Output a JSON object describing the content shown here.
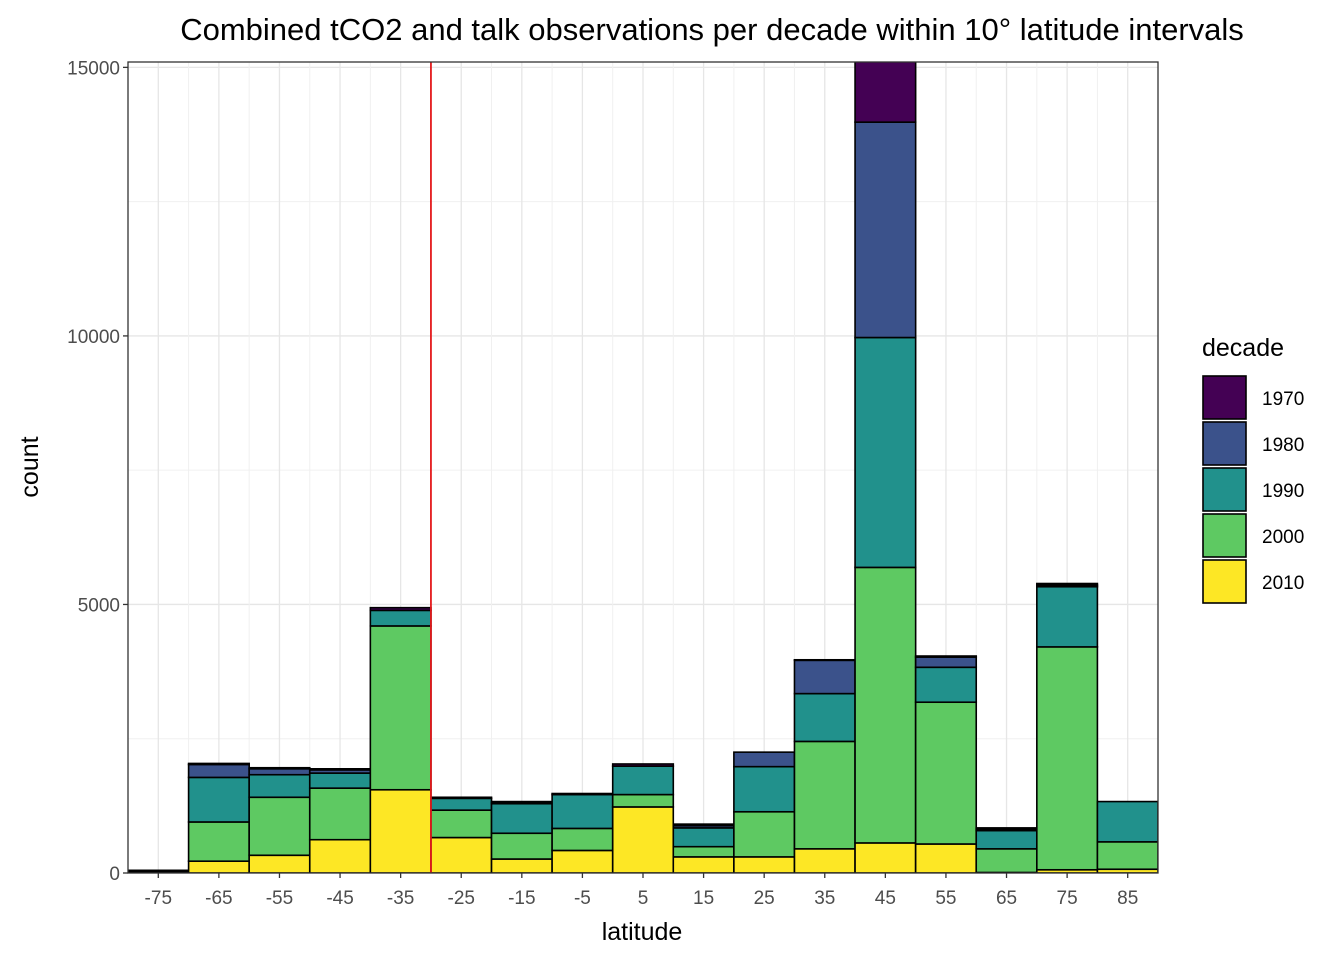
{
  "chart_data": {
    "type": "bar",
    "stacked": true,
    "title": "Combined tCO2 and talk observations per decade within 10° latitude intervals",
    "xlabel": "latitude",
    "ylabel": "count",
    "categories": [
      "-75",
      "-65",
      "-55",
      "-45",
      "-35",
      "-25",
      "-15",
      "-5",
      "5",
      "15",
      "25",
      "35",
      "45",
      "55",
      "65",
      "75",
      "85"
    ],
    "x_centers": [
      -75,
      -65,
      -55,
      -45,
      -35,
      -25,
      -15,
      -5,
      5,
      15,
      25,
      35,
      45,
      55,
      65,
      75,
      85
    ],
    "xlim": [
      -80,
      90
    ],
    "ylim": [
      0,
      15100
    ],
    "y_ticks": [
      0,
      5000,
      10000,
      15000
    ],
    "y_tick_labels": [
      "0",
      "5000",
      "10000",
      "15000"
    ],
    "vline": {
      "x": -30,
      "color": "#e41a1c"
    },
    "grid": true,
    "legend": {
      "title": "decade",
      "position": "right"
    },
    "series": [
      {
        "name": "2010",
        "color": "#fde725",
        "values": [
          15,
          220,
          330,
          620,
          1550,
          660,
          260,
          420,
          1230,
          300,
          300,
          450,
          560,
          540,
          10,
          60,
          70
        ]
      },
      {
        "name": "2000",
        "color": "#5ec962",
        "values": [
          10,
          730,
          1080,
          960,
          3050,
          510,
          480,
          410,
          230,
          190,
          840,
          2000,
          5130,
          2640,
          440,
          4150,
          510
        ]
      },
      {
        "name": "1990",
        "color": "#21918c",
        "values": [
          10,
          830,
          420,
          280,
          290,
          220,
          550,
          630,
          530,
          350,
          840,
          890,
          4280,
          650,
          340,
          1120,
          750
        ]
      },
      {
        "name": "1980",
        "color": "#3b528b",
        "values": [
          10,
          240,
          110,
          60,
          0,
          0,
          20,
          0,
          0,
          40,
          270,
          620,
          4010,
          190,
          30,
          30,
          0
        ]
      },
      {
        "name": "1970",
        "color": "#440154",
        "values": [
          5,
          20,
          20,
          20,
          50,
          20,
          20,
          20,
          40,
          30,
          0,
          10,
          1200,
          20,
          20,
          30,
          0
        ]
      }
    ]
  }
}
